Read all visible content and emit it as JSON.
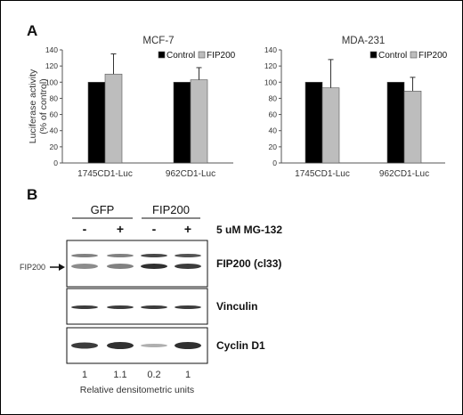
{
  "panelA": {
    "letter": "A",
    "charts": [
      {
        "type": "bar",
        "title": "MCF-7",
        "ylabel": [
          "Luciferase activity",
          "(% of control)"
        ],
        "ylim": [
          0,
          140
        ],
        "yticks": [
          0,
          20,
          40,
          60,
          80,
          100,
          120,
          140
        ],
        "categories": [
          "1745CD1-Luc",
          "962CD1-Luc"
        ],
        "legend_position": "top-right",
        "series": [
          {
            "name": "Control",
            "color": "#000000",
            "values": [
              100,
              100
            ],
            "errors": [
              0,
              0
            ]
          },
          {
            "name": "FIP200",
            "color": "#bdbdbd",
            "values": [
              110,
              103
            ],
            "errors": [
              25,
              15
            ]
          }
        ]
      },
      {
        "type": "bar",
        "title": "MDA-231",
        "ylabel": [],
        "ylim": [
          0,
          140
        ],
        "yticks": [
          0,
          20,
          40,
          60,
          80,
          100,
          120,
          140
        ],
        "categories": [
          "1745CD1-Luc",
          "962CD1-Luc"
        ],
        "legend_position": "top-right",
        "series": [
          {
            "name": "Control",
            "color": "#000000",
            "values": [
              100,
              100
            ],
            "errors": [
              0,
              0
            ]
          },
          {
            "name": "FIP200",
            "color": "#bdbdbd",
            "values": [
              93,
              89
            ],
            "errors": [
              35,
              17
            ]
          }
        ]
      }
    ]
  },
  "panelB": {
    "letter": "B",
    "groups": [
      "GFP",
      "FIP200"
    ],
    "treatment_signs": [
      "-",
      "+",
      "-",
      "+"
    ],
    "treatment_label": "5 uM MG-132",
    "arrow_label": "FIP200",
    "blots": [
      {
        "label": "FIP200 (cl33)"
      },
      {
        "label": "Vinculin"
      },
      {
        "label": "Cyclin D1"
      }
    ],
    "densitometry": [
      "1",
      "1.1",
      "0.2",
      "1"
    ],
    "densitometry_label": "Relative densitometric units"
  },
  "colors": {
    "control": "#000000",
    "fip200": "#bdbdbd",
    "band": "#1a1a1a"
  }
}
